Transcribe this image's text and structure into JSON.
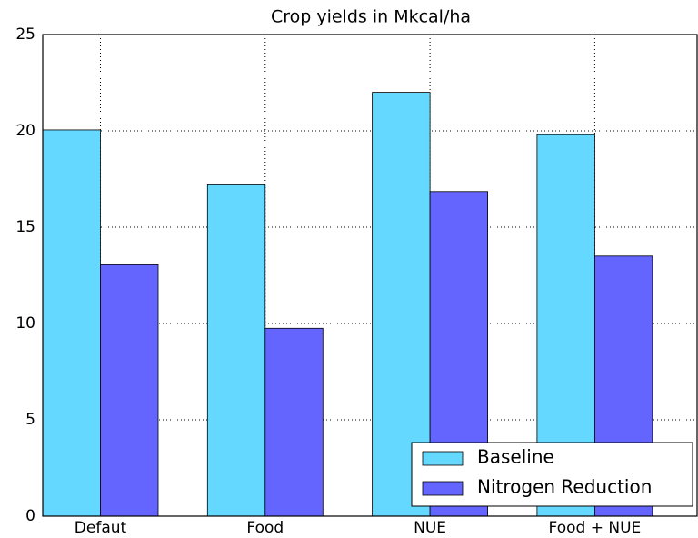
{
  "chart_data": {
    "type": "bar",
    "title": "Crop yields in Mkcal/ha",
    "categories": [
      "Defaut",
      "Food",
      "NUE",
      "Food + NUE"
    ],
    "series": [
      {
        "name": "Baseline",
        "color": "#64d8ff",
        "values": [
          20.05,
          17.2,
          22.0,
          19.8
        ]
      },
      {
        "name": "Nitrogen Reduction",
        "color": "#6464ff",
        "values": [
          13.05,
          9.75,
          16.85,
          13.5
        ]
      }
    ],
    "ylim": [
      0,
      25
    ],
    "yticks": [
      0,
      5,
      10,
      15,
      20,
      25
    ],
    "grid": true,
    "legend": "lower right"
  }
}
